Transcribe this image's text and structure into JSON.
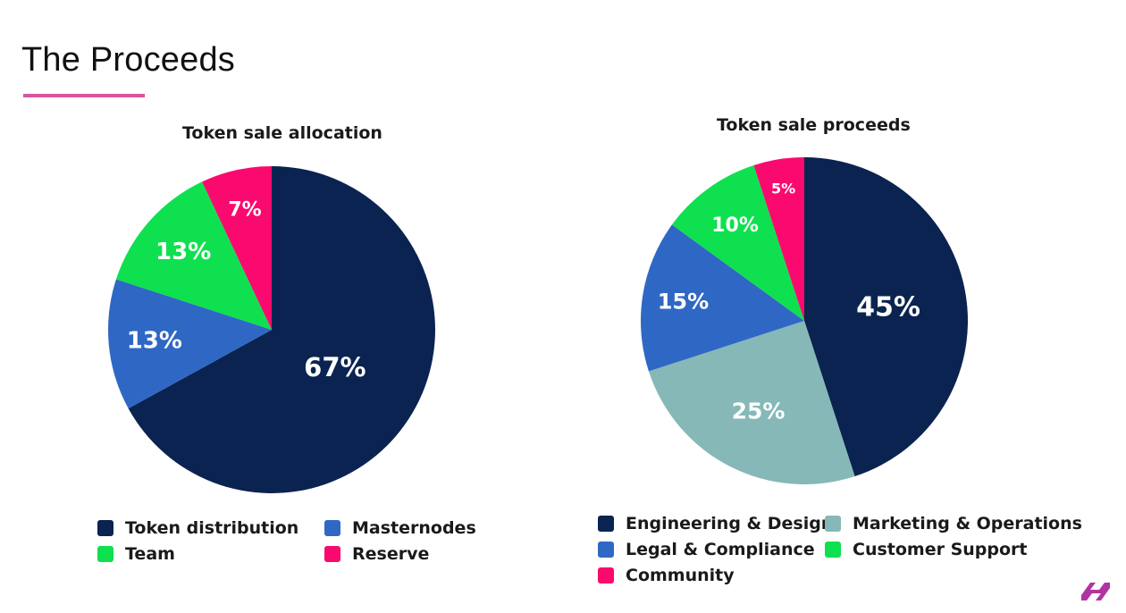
{
  "page": {
    "title": "The Proceeds",
    "accent_color": "#d9559f"
  },
  "chart_data": [
    {
      "type": "pie",
      "title": "Token sale allocation",
      "legend_position": "bottom",
      "series": [
        {
          "name": "Token distribution",
          "value": 67,
          "label": "67%",
          "color": "#0b2350"
        },
        {
          "name": "Masternodes",
          "value": 13,
          "label": "13%",
          "color": "#2f68c4"
        },
        {
          "name": "Team",
          "value": 13,
          "label": "13%",
          "color": "#0fe04f"
        },
        {
          "name": "Reserve",
          "value": 7,
          "label": "7%",
          "color": "#fa0a6e"
        }
      ],
      "legend": [
        {
          "name": "Token distribution",
          "color": "#0b2350"
        },
        {
          "name": "Masternodes",
          "color": "#2f68c4"
        },
        {
          "name": "Team",
          "color": "#0fe04f"
        },
        {
          "name": "Reserve",
          "color": "#fa0a6e"
        }
      ]
    },
    {
      "type": "pie",
      "title": "Token sale proceeds",
      "legend_position": "bottom",
      "series": [
        {
          "name": "Engineering & Design",
          "value": 45,
          "label": "45%",
          "color": "#0b2350"
        },
        {
          "name": "Marketing & Operations",
          "value": 25,
          "label": "25%",
          "color": "#86b8b8"
        },
        {
          "name": "Legal & Compliance",
          "value": 15,
          "label": "15%",
          "color": "#2f68c4"
        },
        {
          "name": "Customer Support",
          "value": 10,
          "label": "10%",
          "color": "#0fe04f"
        },
        {
          "name": "Community",
          "value": 5,
          "label": "5%",
          "color": "#fa0a6e"
        }
      ],
      "legend": [
        {
          "name": "Engineering & Design",
          "color": "#0b2350"
        },
        {
          "name": "Marketing & Operations",
          "color": "#86b8b8"
        },
        {
          "name": "Legal & Compliance",
          "color": "#2f68c4"
        },
        {
          "name": "Customer Support",
          "color": "#0fe04f"
        },
        {
          "name": "Community",
          "color": "#fa0a6e"
        }
      ]
    }
  ],
  "brand": {
    "icon": "h-logo-icon",
    "color": "#b0359e"
  }
}
